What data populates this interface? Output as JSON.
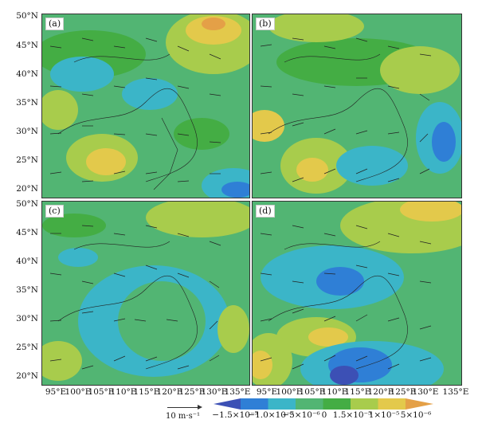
{
  "panels": [
    {
      "id": "a",
      "label": "(a)"
    },
    {
      "id": "b",
      "label": "(b)"
    },
    {
      "id": "c",
      "label": "(c)"
    },
    {
      "id": "d",
      "label": "(d)"
    }
  ],
  "y_axis_top": [
    "50°N",
    "45°N",
    "40°N",
    "35°N",
    "30°N",
    "25°N",
    "20°N"
  ],
  "y_axis_bottom": [
    "50°N",
    "45°N",
    "40°N",
    "35°N",
    "30°N",
    "25°N",
    "20°N"
  ],
  "x_axis_left": [
    "95°E",
    "100°E",
    "105°E",
    "110°E",
    "115°E",
    "120°E",
    "125°E",
    "130°E",
    "135°E"
  ],
  "x_axis_right": [
    "95°E",
    "100°E",
    "105°E",
    "110°E",
    "115°E",
    "120°E",
    "125°E",
    "130°E",
    "135°E"
  ],
  "reference_vector": {
    "label": "10 m·s⁻¹"
  },
  "colorbar": {
    "labels": [
      "−1.5×10⁻⁵",
      "−1.0×10⁻⁵",
      "−5×10⁻⁶",
      "0",
      "1.5×10⁻⁵",
      "1×10⁻⁵",
      "5×10⁻⁶"
    ],
    "colors": [
      "#3c50b5",
      "#2f7fd6",
      "#3bb5c8",
      "#52b573",
      "#44ad44",
      "#a8cc4c",
      "#e3c94b",
      "#e4a047"
    ]
  }
}
